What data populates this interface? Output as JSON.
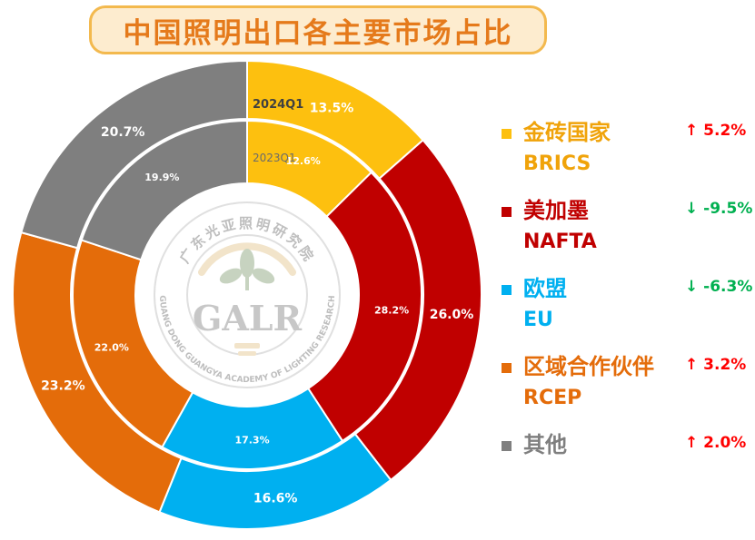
{
  "title": "中国照明出口各主要市场占比",
  "chart_data": {
    "type": "pie",
    "variant": "nested-donut",
    "rings": [
      {
        "label": "2024Q1",
        "position": "outer"
      },
      {
        "label": "2023Q1",
        "position": "inner"
      }
    ],
    "categories": [
      "金砖国家 BRICS",
      "美加墨 NAFTA",
      "欧盟 EU",
      "区域合作伙伴 RCEP",
      "其他"
    ],
    "series": [
      {
        "name": "2024Q1",
        "values": [
          13.5,
          26.0,
          16.6,
          23.2,
          20.7
        ]
      },
      {
        "name": "2023Q1",
        "values": [
          12.6,
          28.2,
          17.3,
          22.0,
          19.9
        ]
      }
    ],
    "value_labels": {
      "2024Q1": [
        "13.5%",
        "26.0%",
        "16.6%",
        "23.2%",
        "20.7%"
      ],
      "2023Q1": [
        "12.6%",
        "28.2%",
        "17.3%",
        "22.0%",
        "19.9%"
      ]
    },
    "colors": [
      "#fdc00f",
      "#c00000",
      "#00b0f0",
      "#e46c0a",
      "#7f7f7f"
    ],
    "legend_position": "right"
  },
  "legend": [
    {
      "cn": "金砖国家",
      "en": "BRICS",
      "change": "↑ 5.2%",
      "direction": "up",
      "color": "#f0a30a"
    },
    {
      "cn": "美加墨",
      "en": "NAFTA",
      "change": "↓ -9.5%",
      "direction": "down",
      "color": "#c00000"
    },
    {
      "cn": "欧盟",
      "en": "EU",
      "change": "↓ -6.3%",
      "direction": "down",
      "color": "#00b0f0"
    },
    {
      "cn": "区域合作伙伴",
      "en": "RCEP",
      "change": "↑ 3.2%",
      "direction": "up",
      "color": "#e46c0a"
    },
    {
      "cn": "其他",
      "en": "",
      "change": "↑ 2.0%",
      "direction": "up",
      "color": "#7f7f7f"
    }
  ],
  "change_colors": {
    "up": "#ff0000",
    "down": "#00b050"
  },
  "watermark": {
    "logo_text": "GALR",
    "arc_top": "广东光亚照明研究院",
    "arc_bottom": "GUANG DONG GUANGYA ACADEMY OF LIGHTING RESEARCH"
  }
}
